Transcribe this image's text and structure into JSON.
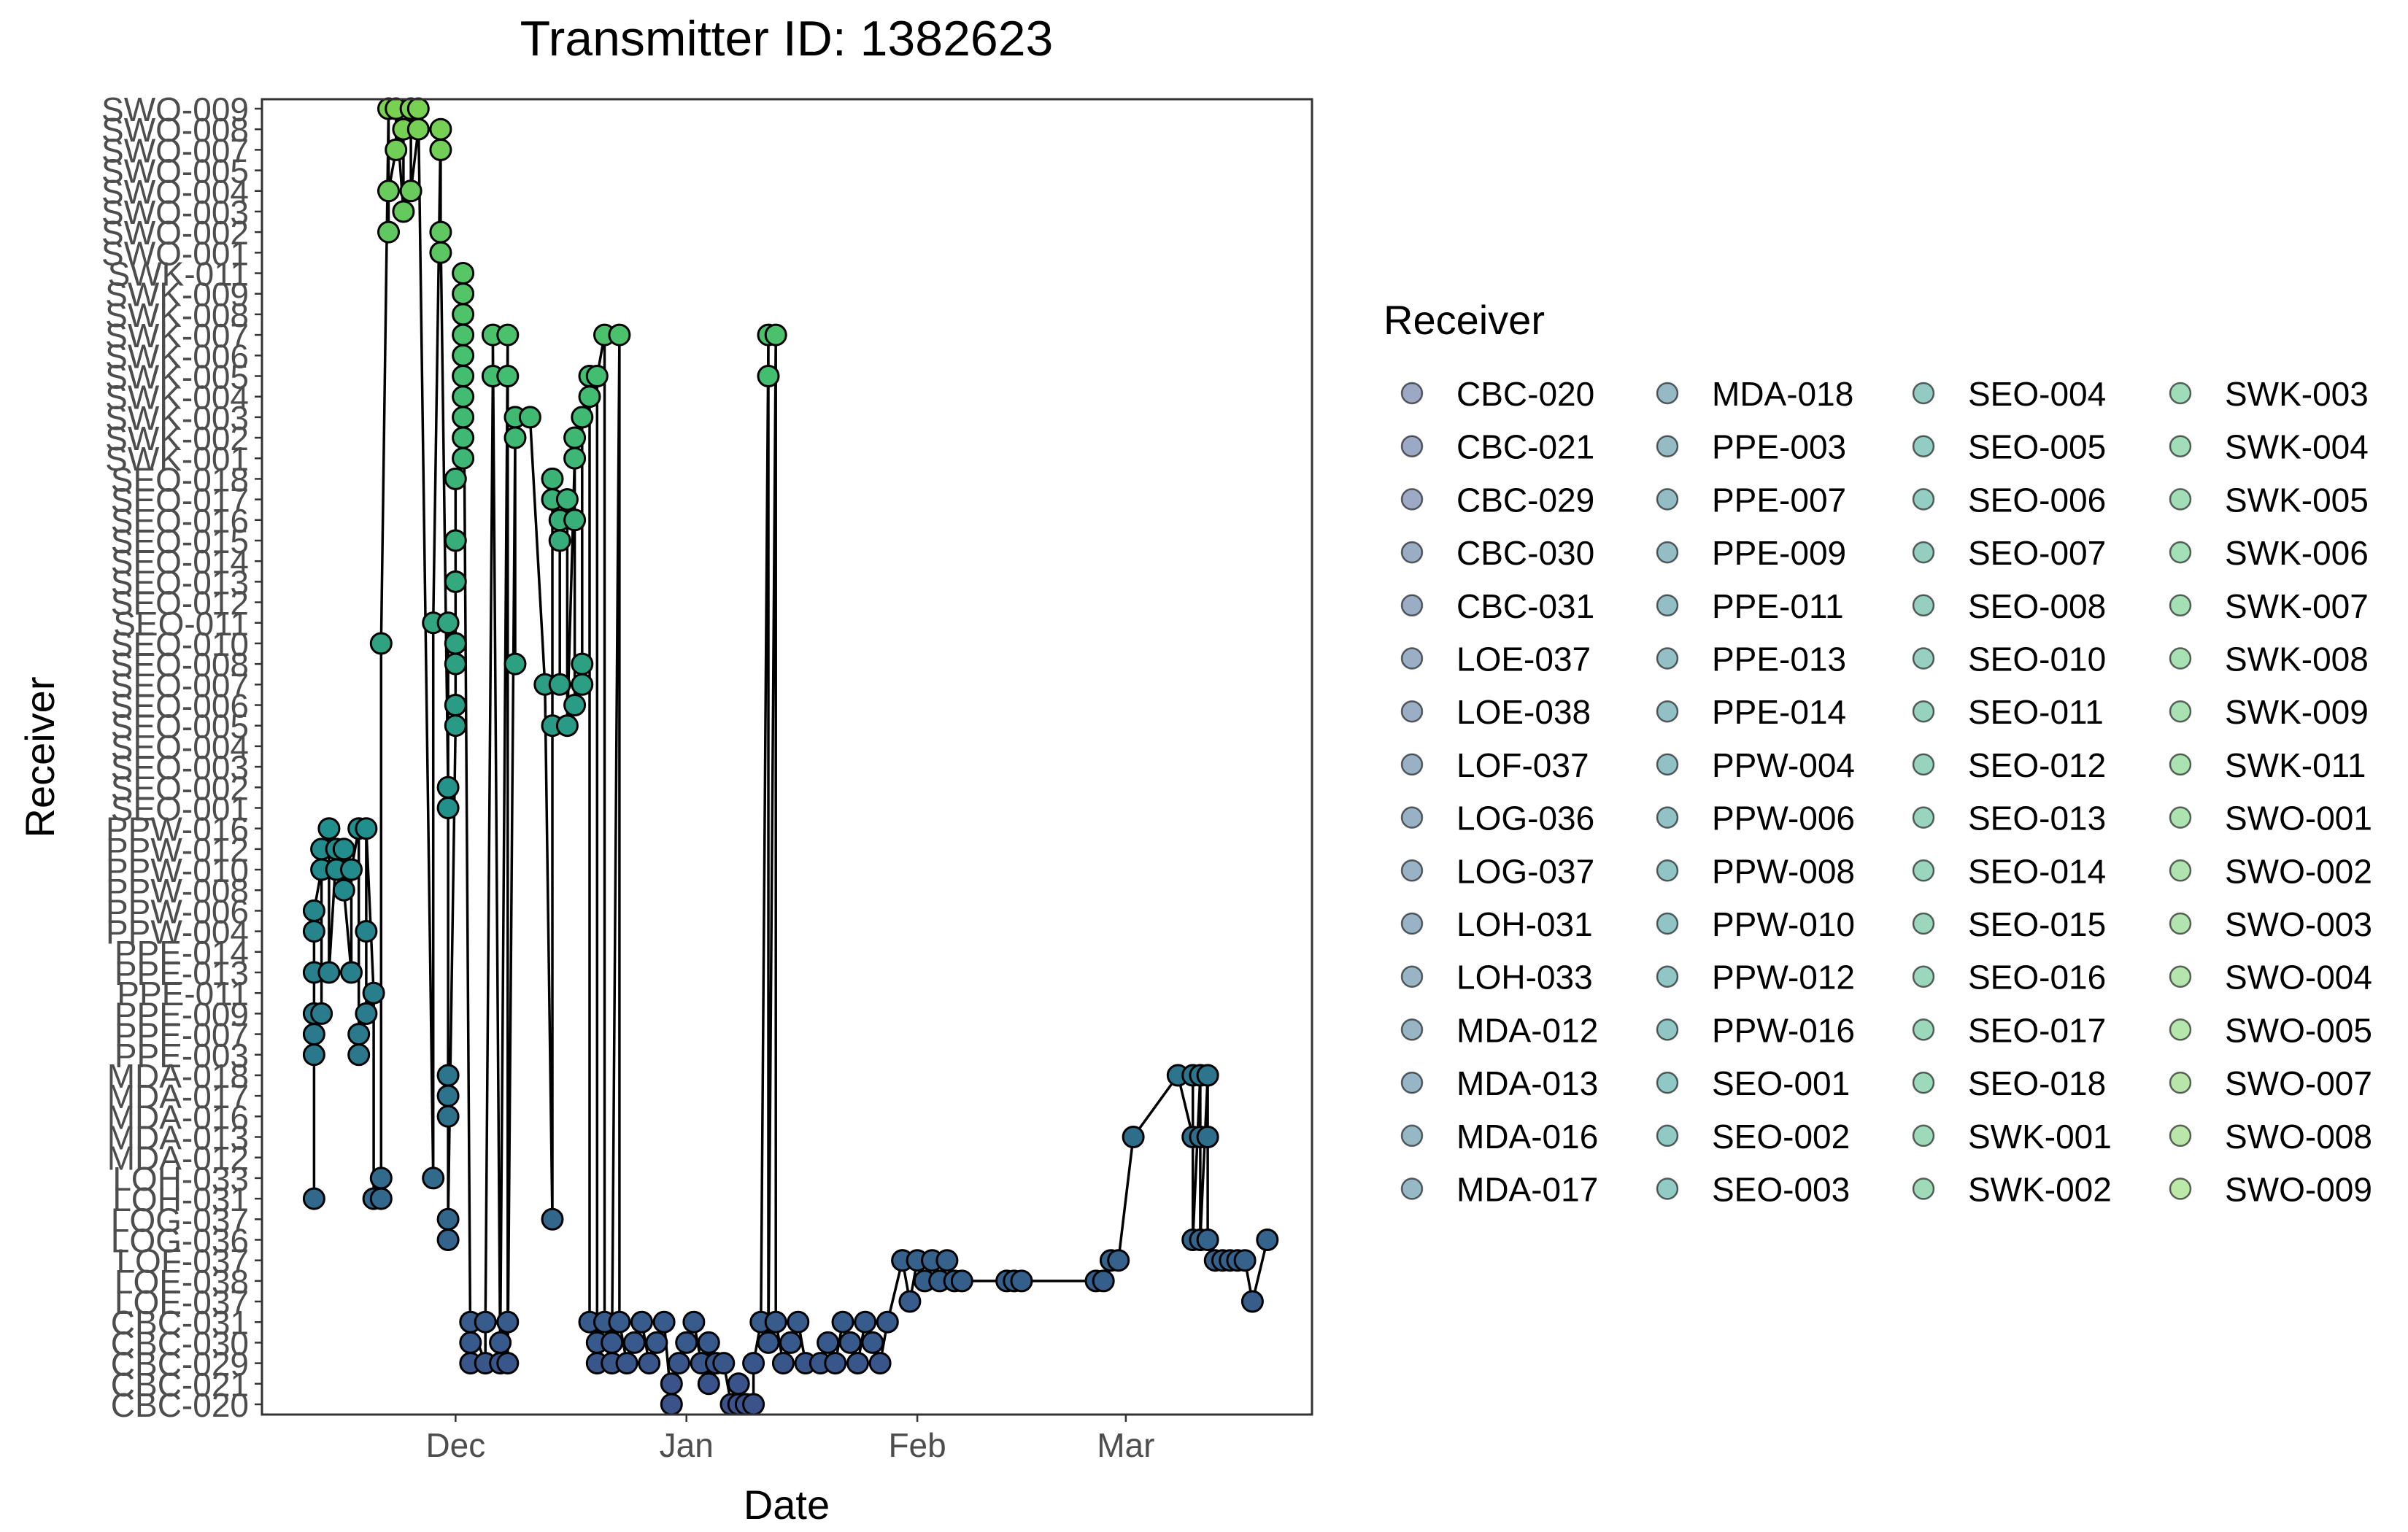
{
  "chart_data": {
    "type": "scatter",
    "title": "Transmitter ID: 1382623",
    "xlabel": "Date",
    "ylabel": "Receiver",
    "x_ticks": [
      "Dec",
      "Jan",
      "Feb",
      "Mar"
    ],
    "x_tick_values": [
      "2020-12-01",
      "2021-01-01",
      "2021-02-01",
      "2021-03-01"
    ],
    "xlim": [
      "2020-11-05",
      "2021-03-26"
    ],
    "y_categories": [
      "CBC-020",
      "CBC-021",
      "CBC-029",
      "CBC-030",
      "CBC-031",
      "LOE-037",
      "LOE-038",
      "LOF-037",
      "LOG-036",
      "LOG-037",
      "LOH-031",
      "LOH-033",
      "MDA-012",
      "MDA-013",
      "MDA-016",
      "MDA-017",
      "MDA-018",
      "PPE-003",
      "PPE-007",
      "PPE-009",
      "PPE-011",
      "PPE-013",
      "PPE-014",
      "PPW-004",
      "PPW-006",
      "PPW-008",
      "PPW-010",
      "PPW-012",
      "PPW-016",
      "SEO-001",
      "SEO-002",
      "SEO-003",
      "SEO-004",
      "SEO-005",
      "SEO-006",
      "SEO-007",
      "SEO-008",
      "SEO-010",
      "SEO-011",
      "SEO-012",
      "SEO-013",
      "SEO-014",
      "SEO-015",
      "SEO-016",
      "SEO-017",
      "SEO-018",
      "SWK-001",
      "SWK-002",
      "SWK-003",
      "SWK-004",
      "SWK-005",
      "SWK-006",
      "SWK-007",
      "SWK-008",
      "SWK-009",
      "SWK-011",
      "SWO-001",
      "SWO-002",
      "SWO-003",
      "SWO-004",
      "SWO-005",
      "SWO-007",
      "SWO-008",
      "SWO-009"
    ],
    "legend_title": "Receiver",
    "legend_position": "right",
    "legend_columns": 4,
    "grid": false,
    "point_color_scale": "viridis (dark blue to light green) by receiver",
    "line_color": "#000000",
    "colors": {
      "low": "#3B528B",
      "mid": "#21908C",
      "high": "#5DC863",
      "outline": "#000000",
      "panel_border": "#333333",
      "tick_text": "#4d4d4d",
      "text": "#000000"
    },
    "points": [
      [
        "2020-11-12",
        "LOH-031"
      ],
      [
        "2020-11-12",
        "PPE-003"
      ],
      [
        "2020-11-12",
        "PPE-007"
      ],
      [
        "2020-11-12",
        "PPE-009"
      ],
      [
        "2020-11-12",
        "PPE-013"
      ],
      [
        "2020-11-12",
        "PPW-004"
      ],
      [
        "2020-11-12",
        "PPW-006"
      ],
      [
        "2020-11-13",
        "PPW-010"
      ],
      [
        "2020-11-13",
        "PPE-009"
      ],
      [
        "2020-11-13",
        "PPW-012"
      ],
      [
        "2020-11-14",
        "PPW-016"
      ],
      [
        "2020-11-14",
        "PPE-013"
      ],
      [
        "2020-11-15",
        "PPW-012"
      ],
      [
        "2020-11-15",
        "PPW-010"
      ],
      [
        "2020-11-16",
        "PPW-012"
      ],
      [
        "2020-11-16",
        "PPW-008"
      ],
      [
        "2020-11-17",
        "PPE-013"
      ],
      [
        "2020-11-17",
        "PPW-010"
      ],
      [
        "2020-11-18",
        "PPW-016"
      ],
      [
        "2020-11-18",
        "PPE-007"
      ],
      [
        "2020-11-18",
        "PPE-003"
      ],
      [
        "2020-11-19",
        "PPE-009"
      ],
      [
        "2020-11-19",
        "PPW-004"
      ],
      [
        "2020-11-19",
        "PPW-016"
      ],
      [
        "2020-11-20",
        "PPE-011"
      ],
      [
        "2020-11-20",
        "LOH-031"
      ],
      [
        "2020-11-21",
        "LOH-031"
      ],
      [
        "2020-11-21",
        "LOH-033"
      ],
      [
        "2020-11-21",
        "SEO-010"
      ],
      [
        "2020-11-22",
        "SWO-009"
      ],
      [
        "2020-11-22",
        "SWO-002"
      ],
      [
        "2020-11-22",
        "SWO-004"
      ],
      [
        "2020-11-23",
        "SWO-007"
      ],
      [
        "2020-11-23",
        "SWO-009"
      ],
      [
        "2020-11-24",
        "SWO-003"
      ],
      [
        "2020-11-24",
        "SWO-008"
      ],
      [
        "2020-11-25",
        "SWO-009"
      ],
      [
        "2020-11-25",
        "SWO-004"
      ],
      [
        "2020-11-26",
        "SWO-008"
      ],
      [
        "2020-11-26",
        "SWO-009"
      ],
      [
        "2020-11-28",
        "LOH-033"
      ],
      [
        "2020-11-28",
        "SEO-011"
      ],
      [
        "2020-11-29",
        "SWO-008"
      ],
      [
        "2020-11-29",
        "SWO-007"
      ],
      [
        "2020-11-29",
        "SWO-001"
      ],
      [
        "2020-11-29",
        "SWO-002"
      ],
      [
        "2020-11-30",
        "SEO-002"
      ],
      [
        "2020-11-30",
        "SEO-001"
      ],
      [
        "2020-11-30",
        "SEO-011"
      ],
      [
        "2020-11-30",
        "MDA-018"
      ],
      [
        "2020-11-30",
        "MDA-017"
      ],
      [
        "2020-11-30",
        "MDA-016"
      ],
      [
        "2020-11-30",
        "LOG-036"
      ],
      [
        "2020-11-30",
        "LOG-037"
      ],
      [
        "2020-12-01",
        "SEO-005"
      ],
      [
        "2020-12-01",
        "SEO-006"
      ],
      [
        "2020-12-01",
        "SEO-008"
      ],
      [
        "2020-12-01",
        "SEO-010"
      ],
      [
        "2020-12-01",
        "SEO-013"
      ],
      [
        "2020-12-01",
        "SEO-015"
      ],
      [
        "2020-12-01",
        "SEO-018"
      ],
      [
        "2020-12-02",
        "SWK-001"
      ],
      [
        "2020-12-02",
        "SWK-002"
      ],
      [
        "2020-12-02",
        "SWK-003"
      ],
      [
        "2020-12-02",
        "SWK-004"
      ],
      [
        "2020-12-02",
        "SWK-005"
      ],
      [
        "2020-12-02",
        "SWK-006"
      ],
      [
        "2020-12-02",
        "SWK-007"
      ],
      [
        "2020-12-02",
        "SWK-008"
      ],
      [
        "2020-12-02",
        "SWK-009"
      ],
      [
        "2020-12-02",
        "SWK-011"
      ],
      [
        "2020-12-03",
        "CBC-029"
      ],
      [
        "2020-12-03",
        "CBC-030"
      ],
      [
        "2020-12-03",
        "CBC-031"
      ],
      [
        "2020-12-05",
        "CBC-029"
      ],
      [
        "2020-12-05",
        "CBC-031"
      ],
      [
        "2020-12-06",
        "SWK-005"
      ],
      [
        "2020-12-06",
        "SWK-007"
      ],
      [
        "2020-12-07",
        "CBC-029"
      ],
      [
        "2020-12-07",
        "CBC-030"
      ],
      [
        "2020-12-08",
        "SWK-007"
      ],
      [
        "2020-12-08",
        "SWK-005"
      ],
      [
        "2020-12-08",
        "CBC-031"
      ],
      [
        "2020-12-08",
        "CBC-029"
      ],
      [
        "2020-12-09",
        "SWK-002"
      ],
      [
        "2020-12-09",
        "SEO-008"
      ],
      [
        "2020-12-09",
        "SWK-003"
      ],
      [
        "2020-12-11",
        "SWK-003"
      ],
      [
        "2020-12-13",
        "SEO-007"
      ],
      [
        "2020-12-14",
        "LOG-037"
      ],
      [
        "2020-12-14",
        "SEO-005"
      ],
      [
        "2020-12-14",
        "SEO-017"
      ],
      [
        "2020-12-14",
        "SEO-018"
      ],
      [
        "2020-12-15",
        "SEO-016"
      ],
      [
        "2020-12-15",
        "SEO-007"
      ],
      [
        "2020-12-15",
        "SEO-015"
      ],
      [
        "2020-12-16",
        "SEO-017"
      ],
      [
        "2020-12-16",
        "SEO-005"
      ],
      [
        "2020-12-17",
        "SWK-001"
      ],
      [
        "2020-12-17",
        "SWK-002"
      ],
      [
        "2020-12-17",
        "SEO-016"
      ],
      [
        "2020-12-17",
        "SEO-006"
      ],
      [
        "2020-12-18",
        "SEO-007"
      ],
      [
        "2020-12-18",
        "SEO-008"
      ],
      [
        "2020-12-18",
        "SWK-003"
      ],
      [
        "2020-12-19",
        "SWK-004"
      ],
      [
        "2020-12-19",
        "SWK-005"
      ],
      [
        "2020-12-19",
        "CBC-031"
      ],
      [
        "2020-12-20",
        "CBC-030"
      ],
      [
        "2020-12-20",
        "CBC-029"
      ],
      [
        "2020-12-20",
        "SWK-005"
      ],
      [
        "2020-12-21",
        "SWK-007"
      ],
      [
        "2020-12-21",
        "CBC-031"
      ],
      [
        "2020-12-22",
        "CBC-029"
      ],
      [
        "2020-12-22",
        "CBC-030"
      ],
      [
        "2020-12-23",
        "SWK-007"
      ],
      [
        "2020-12-23",
        "CBC-031"
      ],
      [
        "2020-12-24",
        "CBC-029"
      ],
      [
        "2020-12-25",
        "CBC-030"
      ],
      [
        "2020-12-26",
        "CBC-031"
      ],
      [
        "2020-12-27",
        "CBC-029"
      ],
      [
        "2020-12-28",
        "CBC-030"
      ],
      [
        "2020-12-29",
        "CBC-031"
      ],
      [
        "2020-12-30",
        "CBC-020"
      ],
      [
        "2020-12-30",
        "CBC-021"
      ],
      [
        "2020-12-31",
        "CBC-029"
      ],
      [
        "2021-01-01",
        "CBC-030"
      ],
      [
        "2021-01-02",
        "CBC-031"
      ],
      [
        "2021-01-03",
        "CBC-029"
      ],
      [
        "2021-01-04",
        "CBC-030"
      ],
      [
        "2021-01-04",
        "CBC-021"
      ],
      [
        "2021-01-05",
        "CBC-029"
      ],
      [
        "2021-01-06",
        "CBC-029"
      ],
      [
        "2021-01-07",
        "CBC-020"
      ],
      [
        "2021-01-08",
        "CBC-021"
      ],
      [
        "2021-01-08",
        "CBC-020"
      ],
      [
        "2021-01-09",
        "CBC-020"
      ],
      [
        "2021-01-10",
        "CBC-020"
      ],
      [
        "2021-01-10",
        "CBC-029"
      ],
      [
        "2021-01-11",
        "CBC-031"
      ],
      [
        "2021-01-12",
        "SWK-007"
      ],
      [
        "2021-01-12",
        "SWK-005"
      ],
      [
        "2021-01-12",
        "CBC-030"
      ],
      [
        "2021-01-13",
        "SWK-007"
      ],
      [
        "2021-01-13",
        "CBC-031"
      ],
      [
        "2021-01-14",
        "CBC-029"
      ],
      [
        "2021-01-15",
        "CBC-030"
      ],
      [
        "2021-01-16",
        "CBC-031"
      ],
      [
        "2021-01-17",
        "CBC-029"
      ],
      [
        "2021-01-19",
        "CBC-029"
      ],
      [
        "2021-01-20",
        "CBC-030"
      ],
      [
        "2021-01-21",
        "CBC-029"
      ],
      [
        "2021-01-22",
        "CBC-031"
      ],
      [
        "2021-01-23",
        "CBC-030"
      ],
      [
        "2021-01-24",
        "CBC-029"
      ],
      [
        "2021-01-25",
        "CBC-031"
      ],
      [
        "2021-01-26",
        "CBC-030"
      ],
      [
        "2021-01-27",
        "CBC-029"
      ],
      [
        "2021-01-28",
        "CBC-031"
      ],
      [
        "2021-01-30",
        "LOF-037"
      ],
      [
        "2021-01-30",
        "LOF-037"
      ],
      [
        "2021-01-31",
        "LOE-037"
      ],
      [
        "2021-02-01",
        "LOF-037"
      ],
      [
        "2021-02-02",
        "LOE-038"
      ],
      [
        "2021-02-03",
        "LOF-037"
      ],
      [
        "2021-02-04",
        "LOE-038"
      ],
      [
        "2021-02-05",
        "LOF-037"
      ],
      [
        "2021-02-06",
        "LOE-038"
      ],
      [
        "2021-02-07",
        "LOE-038"
      ],
      [
        "2021-02-13",
        "LOE-038"
      ],
      [
        "2021-02-14",
        "LOE-038"
      ],
      [
        "2021-02-15",
        "LOE-038"
      ],
      [
        "2021-02-25",
        "LOE-038"
      ],
      [
        "2021-02-26",
        "LOE-038"
      ],
      [
        "2021-02-27",
        "LOF-037"
      ],
      [
        "2021-02-28",
        "LOF-037"
      ],
      [
        "2021-03-02",
        "MDA-013"
      ],
      [
        "2021-03-08",
        "MDA-018"
      ],
      [
        "2021-03-10",
        "MDA-013"
      ],
      [
        "2021-03-10",
        "MDA-018"
      ],
      [
        "2021-03-10",
        "LOG-036"
      ],
      [
        "2021-03-11",
        "MDA-018"
      ],
      [
        "2021-03-11",
        "MDA-013"
      ],
      [
        "2021-03-11",
        "LOG-036"
      ],
      [
        "2021-03-12",
        "MDA-018"
      ],
      [
        "2021-03-12",
        "MDA-013"
      ],
      [
        "2021-03-12",
        "LOG-036"
      ],
      [
        "2021-03-13",
        "LOF-037"
      ],
      [
        "2021-03-14",
        "LOF-037"
      ],
      [
        "2021-03-15",
        "LOF-037"
      ],
      [
        "2021-03-16",
        "LOF-037"
      ],
      [
        "2021-03-17",
        "LOF-037"
      ],
      [
        "2021-03-18",
        "LOE-037"
      ],
      [
        "2021-03-20",
        "LOG-036"
      ]
    ]
  }
}
